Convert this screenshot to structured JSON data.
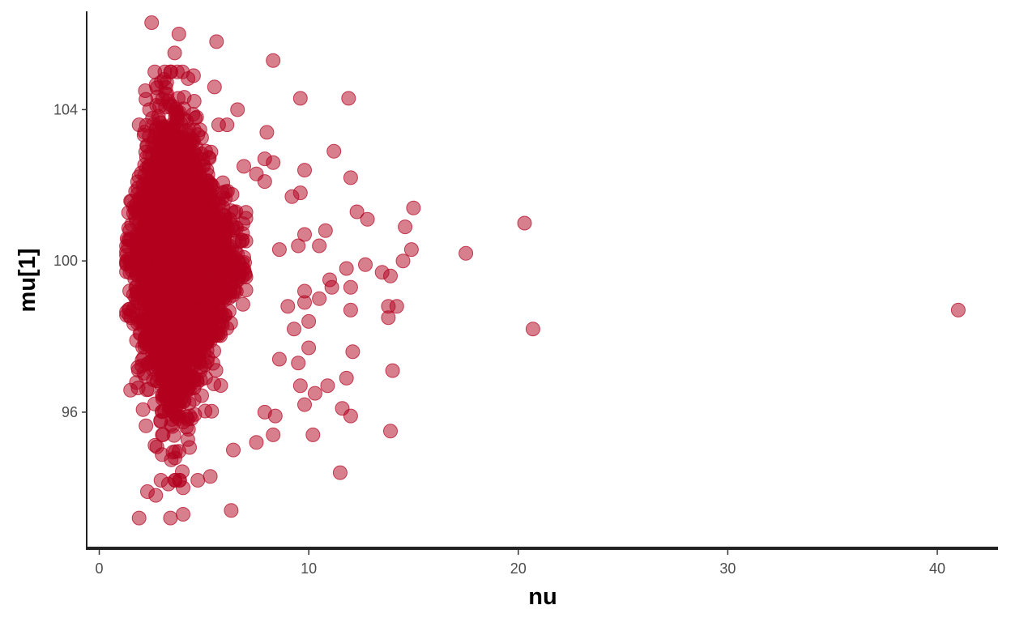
{
  "chart_data": {
    "type": "scatter",
    "title": "",
    "xlabel": "nu",
    "ylabel": "mu[1]",
    "xlim": [
      -0.6,
      42.9
    ],
    "ylim": [
      92.4,
      106.6
    ],
    "x_ticks": [
      0,
      10,
      20,
      30,
      40
    ],
    "x_tick_labels": [
      "0",
      "10",
      "20",
      "30",
      "40"
    ],
    "y_ticks": [
      96,
      100,
      104
    ],
    "y_tick_labels": [
      "96",
      "100",
      "104"
    ],
    "grid": false,
    "legend": "none",
    "point_color": "#B2001E",
    "point_opacity": 0.5,
    "dense_cloud": {
      "description_only": false,
      "n_points": 4000,
      "x_range": [
        1.3,
        7.0
      ],
      "x_mode": 3.5,
      "y_center": 100,
      "y_range": [
        93.2,
        106.5
      ]
    },
    "points": [
      [
        2.5,
        106.3
      ],
      [
        3.8,
        106.0
      ],
      [
        3.6,
        105.5
      ],
      [
        5.6,
        105.8
      ],
      [
        8.3,
        105.3
      ],
      [
        4.5,
        104.9
      ],
      [
        5.5,
        104.6
      ],
      [
        3.1,
        104.8
      ],
      [
        2.2,
        104.5
      ],
      [
        9.6,
        104.3
      ],
      [
        11.9,
        104.3
      ],
      [
        2.4,
        104.0
      ],
      [
        6.6,
        104.0
      ],
      [
        1.9,
        103.6
      ],
      [
        5.7,
        103.6
      ],
      [
        6.1,
        103.6
      ],
      [
        8.0,
        103.4
      ],
      [
        7.9,
        102.7
      ],
      [
        11.2,
        102.9
      ],
      [
        8.3,
        102.6
      ],
      [
        6.9,
        102.5
      ],
      [
        7.5,
        102.3
      ],
      [
        9.8,
        102.4
      ],
      [
        12.0,
        102.2
      ],
      [
        7.9,
        102.1
      ],
      [
        9.2,
        101.7
      ],
      [
        9.6,
        101.8
      ],
      [
        12.3,
        101.3
      ],
      [
        12.8,
        101.1
      ],
      [
        15.0,
        101.4
      ],
      [
        10.8,
        100.8
      ],
      [
        14.6,
        100.9
      ],
      [
        20.3,
        101.0
      ],
      [
        9.8,
        100.7
      ],
      [
        10.5,
        100.4
      ],
      [
        9.5,
        100.4
      ],
      [
        8.6,
        100.3
      ],
      [
        17.5,
        100.2
      ],
      [
        14.9,
        100.3
      ],
      [
        14.5,
        100.0
      ],
      [
        12.7,
        99.9
      ],
      [
        11.8,
        99.8
      ],
      [
        13.5,
        99.7
      ],
      [
        13.9,
        99.6
      ],
      [
        11.0,
        99.5
      ],
      [
        11.1,
        99.3
      ],
      [
        12.0,
        99.3
      ],
      [
        9.8,
        99.2
      ],
      [
        10.5,
        99.0
      ],
      [
        9.8,
        98.9
      ],
      [
        9.0,
        98.8
      ],
      [
        12.0,
        98.7
      ],
      [
        13.8,
        98.8
      ],
      [
        14.2,
        98.8
      ],
      [
        41.0,
        98.7
      ],
      [
        13.8,
        98.5
      ],
      [
        10.0,
        98.4
      ],
      [
        9.3,
        98.2
      ],
      [
        20.7,
        98.2
      ],
      [
        10.0,
        97.7
      ],
      [
        12.1,
        97.6
      ],
      [
        9.5,
        97.3
      ],
      [
        8.6,
        97.4
      ],
      [
        14.0,
        97.1
      ],
      [
        11.8,
        96.9
      ],
      [
        9.6,
        96.7
      ],
      [
        10.9,
        96.7
      ],
      [
        10.3,
        96.5
      ],
      [
        9.8,
        96.2
      ],
      [
        11.6,
        96.1
      ],
      [
        12.0,
        95.9
      ],
      [
        8.4,
        95.9
      ],
      [
        7.9,
        96.0
      ],
      [
        13.9,
        95.5
      ],
      [
        10.2,
        95.4
      ],
      [
        8.3,
        95.4
      ],
      [
        7.5,
        95.2
      ],
      [
        6.4,
        95.0
      ],
      [
        11.5,
        94.4
      ],
      [
        5.3,
        94.3
      ],
      [
        3.3,
        94.1
      ],
      [
        2.3,
        93.9
      ],
      [
        4.0,
        94.0
      ],
      [
        2.7,
        93.8
      ],
      [
        6.3,
        93.4
      ],
      [
        4.0,
        93.3
      ],
      [
        1.9,
        93.2
      ],
      [
        3.4,
        93.2
      ]
    ]
  }
}
